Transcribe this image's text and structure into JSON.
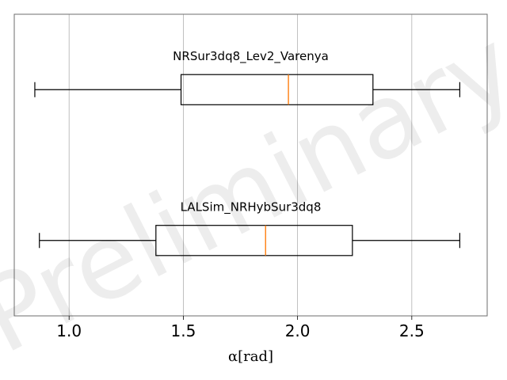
{
  "chart_data": {
    "type": "boxplot",
    "orientation": "horizontal",
    "xlabel": "α[rad]",
    "xlim": [
      0.76,
      2.83
    ],
    "xticks": [
      1.0,
      1.5,
      2.0,
      2.5
    ],
    "xtick_labels": [
      "1.0",
      "1.5",
      "2.0",
      "2.5"
    ],
    "grid": "vertical",
    "watermark": "Preliminary",
    "colors": {
      "box": "#000000",
      "median": "#ff7f0e",
      "grid": "#b0b0b0"
    },
    "series": [
      {
        "label": "NRSur3dq8_Lev2_Varenya",
        "whisker_low": 0.85,
        "q1": 1.49,
        "median": 1.96,
        "q3": 2.33,
        "whisker_high": 2.71
      },
      {
        "label": "LALSim_NRHybSur3dq8",
        "whisker_low": 0.87,
        "q1": 1.38,
        "median": 1.86,
        "q3": 2.24,
        "whisker_high": 2.71
      }
    ]
  }
}
